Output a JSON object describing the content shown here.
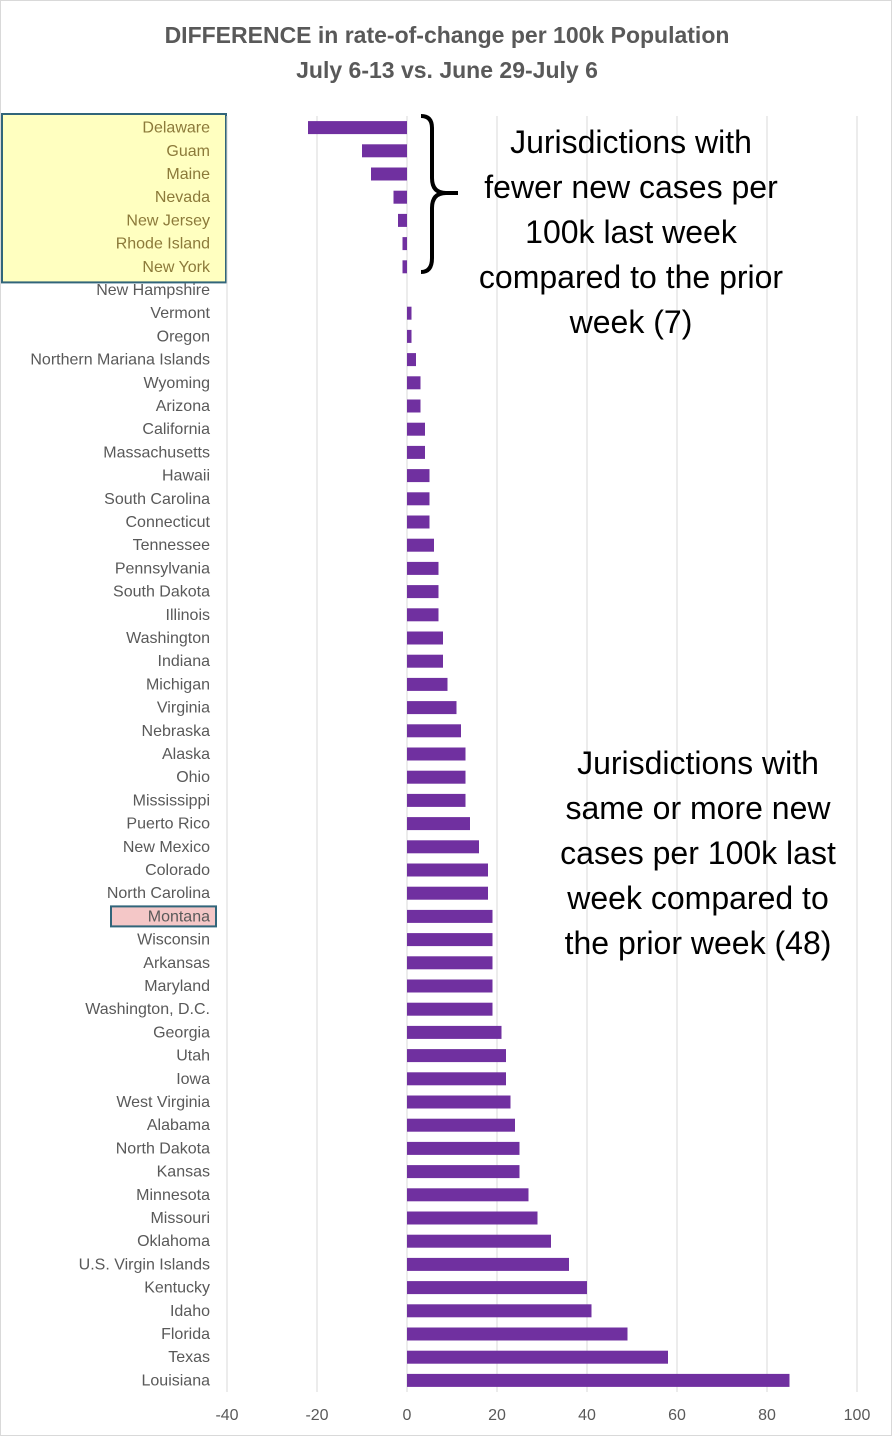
{
  "title_line1": "DIFFERENCE in rate-of-change per 100k Population",
  "title_line2": "July 6-13 vs. June 29-July 6",
  "annotations": {
    "fewer": "Jurisdictions with fewer new cases per 100k last week compared to the prior week (7)",
    "more": "Jurisdictions with same or more new cases per 100k last week compared to the prior week (48)"
  },
  "colors": {
    "bar": "#7030a0",
    "gridline": "#d9d9d9",
    "highlight_yellow_fill": "#ffffc0",
    "highlight_yellow_border": "#31657a",
    "highlight_pink_fill": "#f4c7c7",
    "highlight_pink_border": "#31657a"
  },
  "highlights": {
    "yellow_group": [
      "Delaware",
      "Guam",
      "Maine",
      "Nevada",
      "New Jersey",
      "Rhode Island",
      "New York"
    ],
    "pink_item": "Montana"
  },
  "chart_data": {
    "type": "bar",
    "orientation": "horizontal",
    "title": "DIFFERENCE in rate-of-change per 100k Population July 6-13 vs. June 29-July 6",
    "xlabel": "",
    "ylabel": "",
    "xlim": [
      -40,
      100
    ],
    "xticks": [
      -40,
      -20,
      0,
      20,
      40,
      60,
      80,
      100
    ],
    "grid": "vertical",
    "legend": "none",
    "categories": [
      "Delaware",
      "Guam",
      "Maine",
      "Nevada",
      "New Jersey",
      "Rhode Island",
      "New York",
      "New Hampshire",
      "Vermont",
      "Oregon",
      "Northern Mariana Islands",
      "Wyoming",
      "Arizona",
      "California",
      "Massachusetts",
      "Hawaii",
      "South Carolina",
      "Connecticut",
      "Tennessee",
      "Pennsylvania",
      "South Dakota",
      "Illinois",
      "Washington",
      "Indiana",
      "Michigan",
      "Virginia",
      "Nebraska",
      "Alaska",
      "Ohio",
      "Mississippi",
      "Puerto Rico",
      "New Mexico",
      "Colorado",
      "North Carolina",
      "Montana",
      "Wisconsin",
      "Arkansas",
      "Maryland",
      "Washington, D.C.",
      "Georgia",
      "Utah",
      "Iowa",
      "West Virginia",
      "Alabama",
      "North Dakota",
      "Kansas",
      "Minnesota",
      "Missouri",
      "Oklahoma",
      "U.S. Virgin Islands",
      "Kentucky",
      "Idaho",
      "Florida",
      "Texas",
      "Louisiana"
    ],
    "values": [
      -22,
      -10,
      -8,
      -3,
      -2,
      -1,
      -1,
      0,
      1,
      1,
      2,
      3,
      3,
      4,
      4,
      5,
      5,
      5,
      6,
      7,
      7,
      7,
      8,
      8,
      9,
      11,
      12,
      13,
      13,
      13,
      14,
      16,
      18,
      18,
      19,
      19,
      19,
      19,
      19,
      21,
      22,
      22,
      23,
      24,
      25,
      25,
      27,
      29,
      32,
      36,
      40,
      41,
      49,
      58,
      85
    ]
  }
}
